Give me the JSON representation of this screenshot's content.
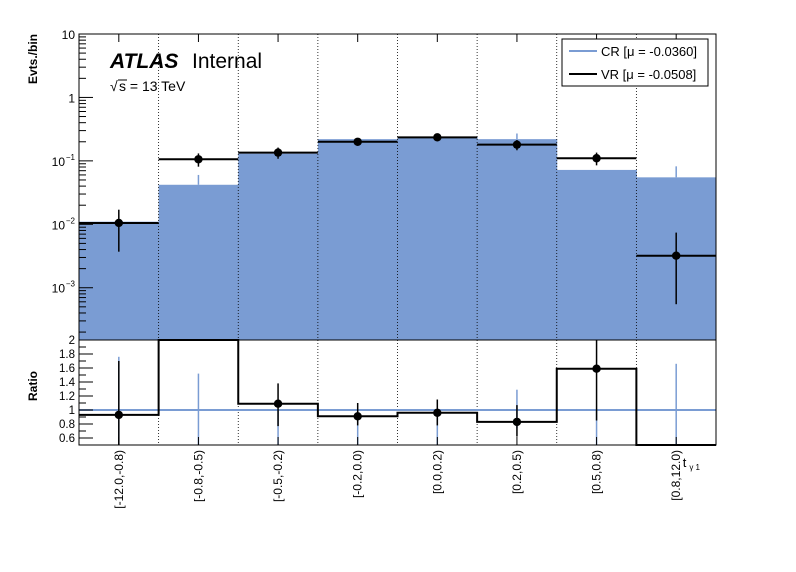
{
  "colors": {
    "cr": "#7a9cd3",
    "vr": "#000000",
    "ratio_line": "#7a9cd3",
    "frame": "#000000"
  },
  "labels": {
    "atlas": "ATLAS",
    "internal": "Internal",
    "energy": "s = 13 TeV",
    "sqrt_symbol": "√"
  },
  "chart_data": [
    {
      "type": "bar",
      "panel": "main",
      "ylabel": "Evts./bin",
      "yscale": "log",
      "ylim": [
        0.00015,
        10
      ],
      "yticks": [
        {
          "value": 10,
          "label": "10"
        },
        {
          "value": 1,
          "label": "1"
        },
        {
          "value": 0.1,
          "label": "10",
          "sup": "−1"
        },
        {
          "value": 0.01,
          "label": "10",
          "sup": "−2"
        },
        {
          "value": 0.001,
          "label": "10",
          "sup": "−3"
        }
      ],
      "categories": [
        "[-12.0,-0.8)",
        "[-0.8,-0.5)",
        "[-0.5,-0.2)",
        "[-0.2,0.0)",
        "[0.0,0.2)",
        "[0.2,0.5)",
        "[0.5,0.8)",
        "[0.8,12.0)"
      ],
      "legend_position": "top-right",
      "series": [
        {
          "name": "CR [μ = -0.0360]",
          "style": "filled",
          "values": [
            0.011,
            0.042,
            0.13,
            0.22,
            0.24,
            0.22,
            0.072,
            0.055
          ],
          "err_low": [
            0.011,
            0.042,
            0.13,
            0.22,
            0.24,
            0.22,
            0.072,
            0.055
          ],
          "err_high": [
            0.011,
            0.06,
            0.13,
            0.22,
            0.24,
            0.27,
            0.072,
            0.082
          ]
        },
        {
          "name": "VR [μ = -0.0508]",
          "style": "points",
          "values": [
            0.0105,
            0.106,
            0.135,
            0.2,
            0.235,
            0.18,
            0.11,
            0.0032
          ],
          "err_low": [
            0.0037,
            0.081,
            0.108,
            0.176,
            0.21,
            0.147,
            0.085,
            0.00055
          ],
          "err_high": [
            0.017,
            0.131,
            0.162,
            0.224,
            0.26,
            0.213,
            0.135,
            0.0074
          ]
        }
      ]
    },
    {
      "type": "line",
      "panel": "ratio",
      "ylabel": "Ratio",
      "ylim": [
        0.5,
        2.0
      ],
      "yticks": [
        {
          "value": 0.6,
          "label": "0.6"
        },
        {
          "value": 0.8,
          "label": "0.8"
        },
        {
          "value": 1.0,
          "label": "1"
        },
        {
          "value": 1.2,
          "label": "1.2"
        },
        {
          "value": 1.4,
          "label": "1.4"
        },
        {
          "value": 1.6,
          "label": "1.6"
        },
        {
          "value": 1.8,
          "label": "1.8"
        },
        {
          "value": 2.0,
          "label": "2"
        }
      ],
      "xlabel": "t",
      "xlabel_sub": "γ 1",
      "categories": [
        "[-12.0,-0.8)",
        "[-0.8,-0.5)",
        "[-0.5,-0.2)",
        "[-0.2,0.0)",
        "[0.0,0.2)",
        "[0.2,0.5)",
        "[0.5,0.8)",
        "[0.8,12.0)"
      ],
      "reference_line": 1.0,
      "series": [
        {
          "name": "VR/CR",
          "values": [
            0.93,
            2.5,
            1.09,
            0.91,
            0.96,
            0.83,
            1.59,
            0.45
          ],
          "err_low": [
            0.33,
            null,
            0.77,
            0.78,
            0.78,
            0.62,
            0.85,
            null
          ],
          "err_high": [
            1.7,
            null,
            1.38,
            1.1,
            1.15,
            1.07,
            2.0,
            null
          ],
          "marker": [
            true,
            false,
            true,
            true,
            true,
            true,
            true,
            false
          ]
        },
        {
          "name": "CR unc",
          "values": [
            1.0,
            1.0,
            1.0,
            1.0,
            1.0,
            1.0,
            1.0,
            1.0
          ],
          "err_low": [
            0.5,
            0.5,
            0.5,
            0.5,
            0.5,
            0.74,
            0.5,
            0.5
          ],
          "err_high": [
            1.76,
            1.52,
            1.0,
            1.0,
            1.0,
            1.29,
            1.0,
            1.66
          ]
        }
      ]
    }
  ]
}
